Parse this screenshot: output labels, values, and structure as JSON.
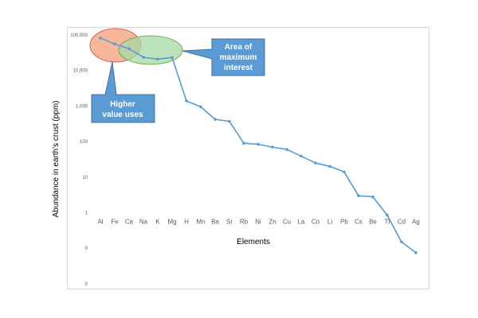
{
  "chart_data": {
    "type": "line",
    "title": "",
    "xlabel": "Elements",
    "ylabel": "Abundance in earth's crust (ppm)",
    "yscale": "log",
    "y_tick_labels": [
      "100,000",
      "10,000",
      "1,000",
      "100",
      "10",
      "1",
      "0",
      "0"
    ],
    "categories": [
      "Al",
      "Fe",
      "Ca",
      "Na",
      "K",
      "Mg",
      "H",
      "Mn",
      "Ba",
      "Sr",
      "Rb",
      "Ni",
      "Zn",
      "Cu",
      "La",
      "Co",
      "Li",
      "Pb",
      "Cs",
      "Be",
      "Tl",
      "Cd",
      "Ag"
    ],
    "series": [
      {
        "values": [
          82000,
          56000,
          41000,
          23600,
          20900,
          23300,
          1400,
          950,
          425,
          370,
          90,
          84,
          70,
          60,
          39,
          25,
          20,
          14,
          3,
          2.8,
          0.85,
          0.15,
          0.075
        ]
      }
    ],
    "grid": false,
    "legend": "none"
  },
  "annotations": {
    "higher_value": [
      "Higher",
      "value uses"
    ],
    "max_interest": [
      "Area of",
      "maximum",
      "interest"
    ]
  },
  "colors": {
    "line": "#5b9bd5",
    "callout": "#5b9bd5",
    "callout_border": "#41719c",
    "ellipse_red_fill": "#f4a582",
    "ellipse_red_stroke": "#d6604d",
    "ellipse_green_fill": "#a6d9a6",
    "ellipse_green_stroke": "#70ad47"
  }
}
